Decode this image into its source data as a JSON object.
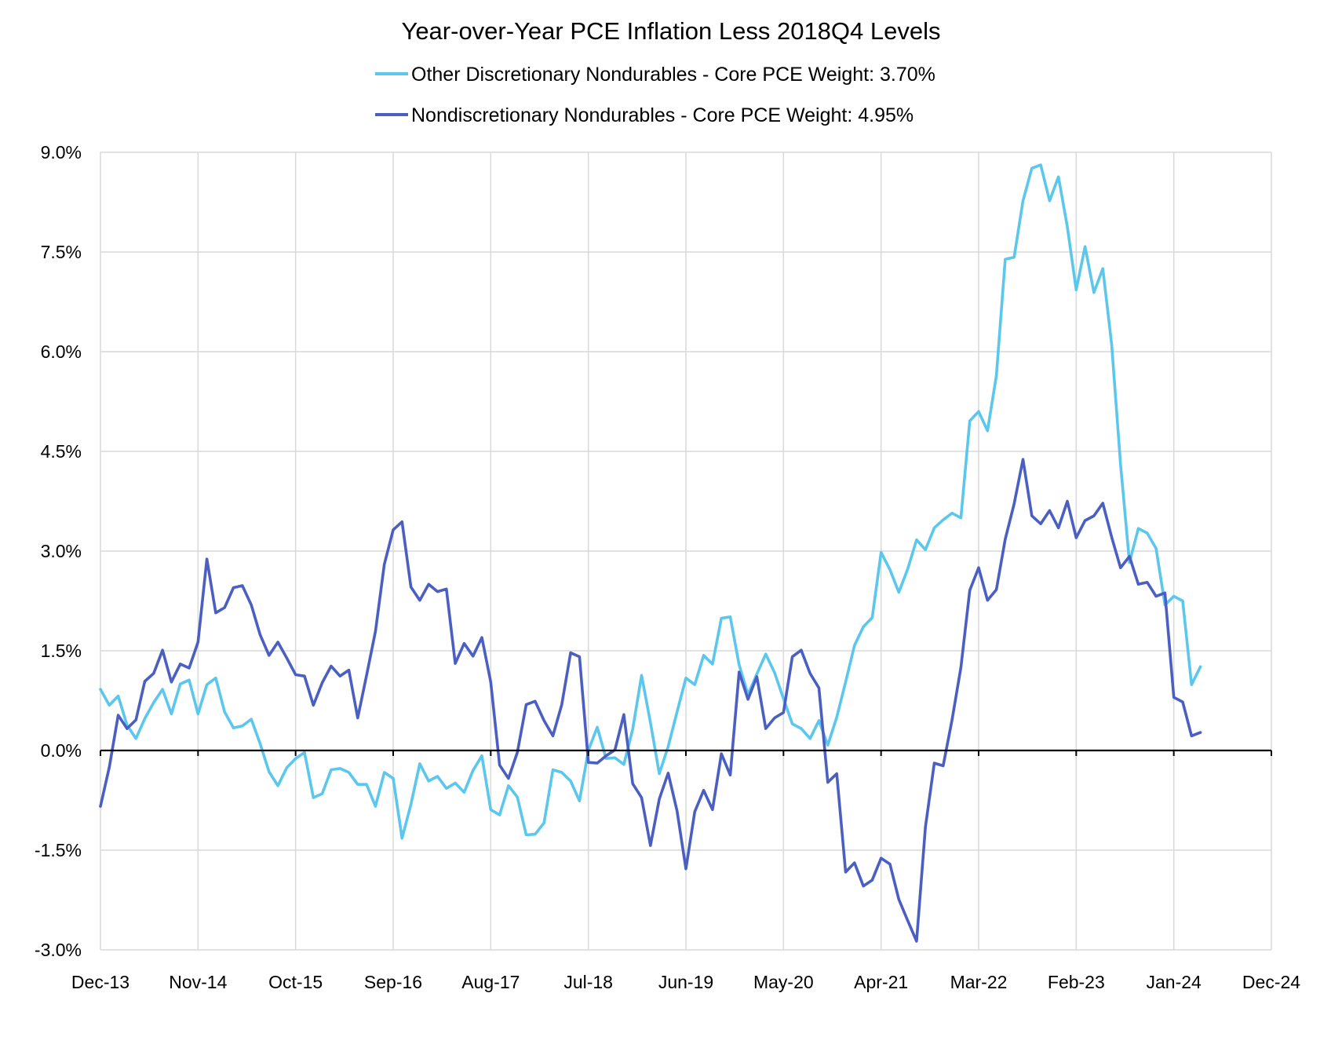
{
  "chart_data": {
    "type": "line",
    "title": "Year-over-Year PCE Inflation Less 2018Q4 Levels",
    "xlabel": "",
    "ylabel": "",
    "ylim": [
      -3.0,
      9.0
    ],
    "yticks": [
      9.0,
      7.5,
      6.0,
      4.5,
      3.0,
      1.5,
      0.0,
      -1.5,
      -3.0
    ],
    "ytick_labels": [
      "9.0%",
      "7.5%",
      "6.0%",
      "4.5%",
      "3.0%",
      "1.5%",
      "0.0%",
      "-1.5%",
      "-3.0%"
    ],
    "xlim": [
      0,
      132
    ],
    "xticks": [
      0,
      11,
      22,
      33,
      44,
      55,
      66,
      77,
      88,
      99,
      110,
      121,
      132
    ],
    "xtick_labels": [
      "Dec-13",
      "Nov-14",
      "Oct-15",
      "Sep-16",
      "Aug-17",
      "Jul-18",
      "Jun-19",
      "May-20",
      "Apr-21",
      "Mar-22",
      "Feb-23",
      "Jan-24",
      "Dec-24"
    ],
    "x_unit": "months since Dec-2013",
    "grid": true,
    "legend_position": "top-center",
    "series": [
      {
        "name": "Other Discretionary Nondurables - Core PCE Weight: 3.70%",
        "color": "#5bc7ec",
        "values": [
          0.92,
          0.68,
          0.82,
          0.38,
          0.18,
          0.48,
          0.72,
          0.92,
          0.55,
          1.0,
          1.06,
          0.55,
          0.99,
          1.09,
          0.58,
          0.34,
          0.37,
          0.47,
          0.1,
          -0.32,
          -0.53,
          -0.26,
          -0.12,
          -0.03,
          -0.71,
          -0.65,
          -0.29,
          -0.27,
          -0.33,
          -0.51,
          -0.51,
          -0.84,
          -0.33,
          -0.42,
          -1.32,
          -0.81,
          -0.2,
          -0.46,
          -0.39,
          -0.57,
          -0.49,
          -0.63,
          -0.3,
          -0.08,
          -0.89,
          -0.97,
          -0.53,
          -0.7,
          -1.27,
          -1.26,
          -1.09,
          -0.29,
          -0.33,
          -0.46,
          -0.76,
          0.0,
          0.35,
          -0.12,
          -0.11,
          -0.21,
          0.32,
          1.13,
          0.42,
          -0.35,
          0.06,
          0.58,
          1.09,
          0.99,
          1.43,
          1.3,
          1.99,
          2.01,
          1.29,
          0.84,
          1.15,
          1.45,
          1.17,
          0.78,
          0.4,
          0.33,
          0.18,
          0.45,
          0.08,
          0.5,
          1.03,
          1.58,
          1.86,
          2.0,
          2.98,
          2.72,
          2.38,
          2.73,
          3.17,
          3.02,
          3.35,
          3.47,
          3.57,
          3.5,
          4.96,
          5.1,
          4.81,
          5.64,
          7.39,
          7.42,
          8.27,
          8.76,
          8.81,
          8.27,
          8.63,
          7.88,
          6.93,
          7.58,
          6.89,
          7.25,
          6.11,
          4.31,
          2.83,
          3.34,
          3.27,
          3.04,
          2.19,
          2.32,
          2.25,
          0.99,
          1.26
        ]
      },
      {
        "name": "Nondiscretionary Nondurables - Core PCE Weight: 4.95%",
        "color": "#4a5fc1",
        "values": [
          -0.84,
          -0.25,
          0.53,
          0.33,
          0.46,
          1.04,
          1.16,
          1.51,
          1.03,
          1.3,
          1.24,
          1.63,
          2.88,
          2.07,
          2.15,
          2.45,
          2.48,
          2.19,
          1.74,
          1.43,
          1.63,
          1.39,
          1.14,
          1.12,
          0.68,
          1.02,
          1.27,
          1.12,
          1.21,
          0.49,
          1.13,
          1.79,
          2.8,
          3.32,
          3.44,
          2.46,
          2.26,
          2.5,
          2.39,
          2.43,
          1.31,
          1.61,
          1.42,
          1.7,
          1.03,
          -0.22,
          -0.42,
          -0.03,
          0.69,
          0.74,
          0.45,
          0.22,
          0.69,
          1.47,
          1.41,
          -0.18,
          -0.19,
          -0.08,
          0.01,
          0.54,
          -0.5,
          -0.71,
          -1.43,
          -0.73,
          -0.34,
          -0.91,
          -1.78,
          -0.92,
          -0.6,
          -0.89,
          -0.05,
          -0.37,
          1.18,
          0.77,
          1.11,
          0.33,
          0.49,
          0.57,
          1.41,
          1.51,
          1.16,
          0.94,
          -0.48,
          -0.35,
          -1.83,
          -1.69,
          -2.04,
          -1.95,
          -1.62,
          -1.71,
          -2.24,
          -2.56,
          -2.87,
          -1.15,
          -0.19,
          -0.23,
          0.46,
          1.25,
          2.41,
          2.75,
          2.26,
          2.42,
          3.18,
          3.71,
          4.38,
          3.53,
          3.41,
          3.61,
          3.35,
          3.75,
          3.2,
          3.46,
          3.53,
          3.72,
          3.21,
          2.75,
          2.92,
          2.5,
          2.53,
          2.32,
          2.37,
          0.8,
          0.73,
          0.22,
          0.27
        ]
      }
    ]
  }
}
